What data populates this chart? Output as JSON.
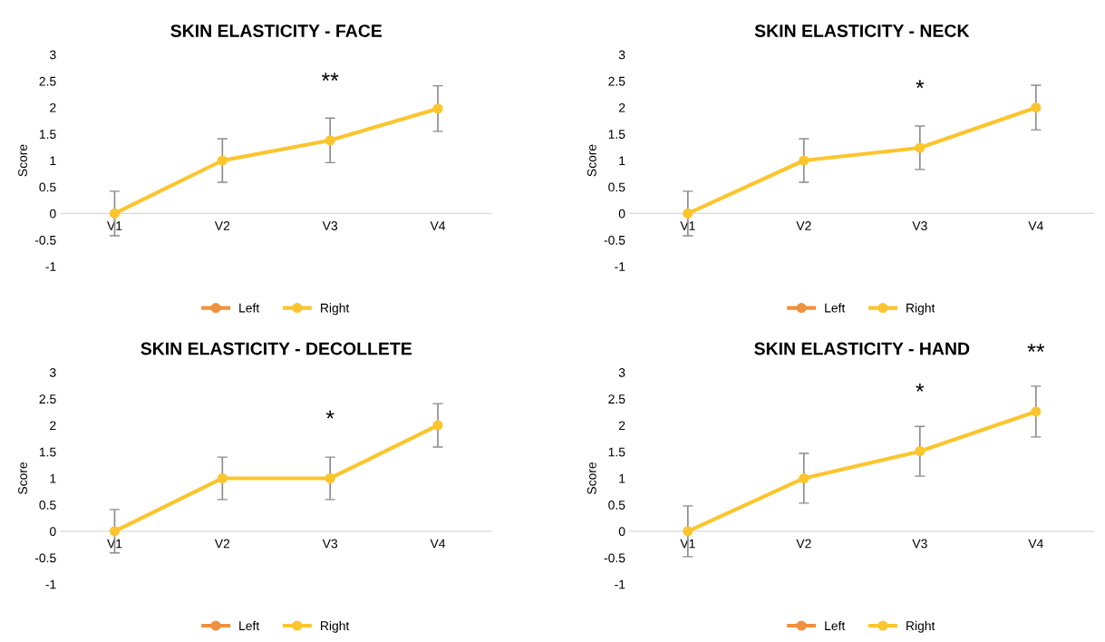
{
  "chart_data": [
    {
      "type": "line",
      "title": "SKIN ELASTICITY - FACE",
      "ylabel": "Score",
      "categories": [
        "V1",
        "V2",
        "V3",
        "V4"
      ],
      "ylim": [
        -1,
        3
      ],
      "yticks": [
        -1,
        -0.5,
        0,
        0.5,
        1,
        1.5,
        2,
        2.5,
        3
      ],
      "grid": false,
      "legend": "bottom",
      "marker": "circle",
      "line_style": "solid",
      "series": [
        {
          "name": "Left",
          "color": "#f0913e",
          "values": [
            null,
            null,
            null,
            null
          ]
        },
        {
          "name": "Right",
          "color": "#fbc52d",
          "values": [
            0,
            1,
            1.38,
            1.98
          ],
          "errors": [
            0.42,
            0.41,
            0.42,
            0.43
          ]
        }
      ],
      "annotations": [
        {
          "text": "**",
          "x": "V3",
          "y": 1.38
        }
      ]
    },
    {
      "type": "line",
      "title": "SKIN ELASTICITY - NECK",
      "ylabel": "Score",
      "categories": [
        "V1",
        "V2",
        "V3",
        "V4"
      ],
      "ylim": [
        -1,
        3
      ],
      "yticks": [
        -1,
        -0.5,
        0,
        0.5,
        1,
        1.5,
        2,
        2.5,
        3
      ],
      "grid": false,
      "legend": "bottom",
      "marker": "circle",
      "line_style": "solid",
      "series": [
        {
          "name": "Left",
          "color": "#f0913e",
          "values": [
            null,
            null,
            null,
            null
          ]
        },
        {
          "name": "Right",
          "color": "#fbc52d",
          "values": [
            0,
            1,
            1.24,
            2.0
          ],
          "errors": [
            0.42,
            0.41,
            0.41,
            0.42
          ]
        }
      ],
      "annotations": [
        {
          "text": "*",
          "x": "V3",
          "y": 1.24
        }
      ]
    },
    {
      "type": "line",
      "title": "SKIN ELASTICITY - DECOLLETE",
      "ylabel": "Score",
      "categories": [
        "V1",
        "V2",
        "V3",
        "V4"
      ],
      "ylim": [
        -1,
        3
      ],
      "yticks": [
        -1,
        -0.5,
        0,
        0.5,
        1,
        1.5,
        2,
        2.5,
        3
      ],
      "grid": false,
      "legend": "bottom",
      "marker": "circle",
      "line_style": "solid",
      "series": [
        {
          "name": "Left",
          "color": "#f0913e",
          "values": [
            null,
            null,
            null,
            null
          ]
        },
        {
          "name": "Right",
          "color": "#fbc52d",
          "values": [
            0,
            1,
            1,
            2
          ],
          "errors": [
            0.41,
            0.4,
            0.4,
            0.41
          ]
        }
      ],
      "annotations": [
        {
          "text": "*",
          "x": "V3",
          "y": 1
        }
      ]
    },
    {
      "type": "line",
      "title": "SKIN ELASTICITY - HAND",
      "ylabel": "Score",
      "categories": [
        "V1",
        "V2",
        "V3",
        "V4"
      ],
      "ylim": [
        -1,
        3
      ],
      "yticks": [
        -1,
        -0.5,
        0,
        0.5,
        1,
        1.5,
        2,
        2.5,
        3
      ],
      "grid": false,
      "legend": "bottom",
      "marker": "circle",
      "line_style": "solid",
      "series": [
        {
          "name": "Left",
          "color": "#f0913e",
          "values": [
            null,
            null,
            null,
            null
          ]
        },
        {
          "name": "Right",
          "color": "#fbc52d",
          "values": [
            0,
            1,
            1.51,
            2.26
          ],
          "errors": [
            0.48,
            0.47,
            0.47,
            0.48
          ]
        }
      ],
      "annotations": [
        {
          "text": "*",
          "x": "V3",
          "y": 1.51
        },
        {
          "text": "**",
          "x": "V4",
          "y": 2.26
        }
      ]
    }
  ]
}
